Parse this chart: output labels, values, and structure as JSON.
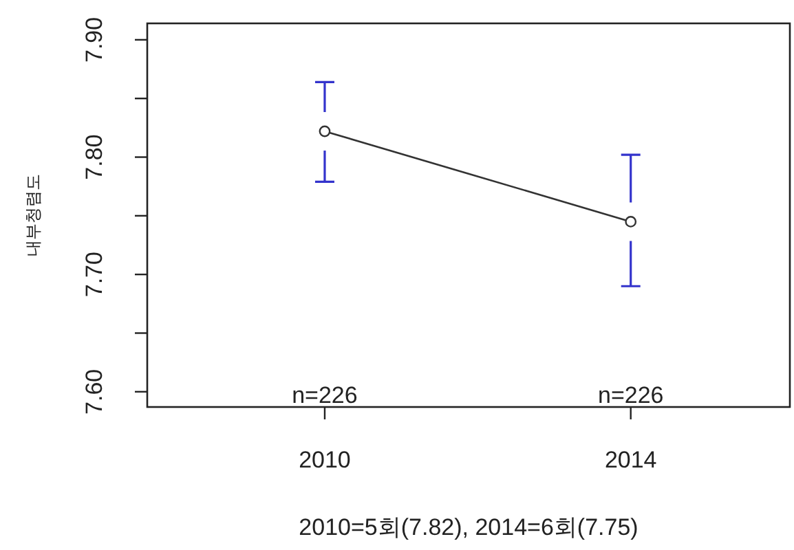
{
  "chart_data": {
    "type": "line",
    "xlabel": "2010=5회(7.82), 2014=6회(7.75)",
    "ylabel": "내부청렴도",
    "categories": [
      "2010",
      "2014"
    ],
    "series": [
      {
        "color": "#333333",
        "values": [
          7.822,
          7.745
        ],
        "errors": [
          [
            7.779,
            7.864
          ],
          [
            7.69,
            7.802
          ]
        ]
      }
    ],
    "ylim": [
      7.587,
      7.914
    ],
    "yticks": [
      {
        "value": 7.6,
        "label": "7.60"
      },
      {
        "value": 7.65,
        "label": null
      },
      {
        "value": 7.7,
        "label": "7.70"
      },
      {
        "value": 7.75,
        "label": null
      },
      {
        "value": 7.8,
        "label": "7.80"
      },
      {
        "value": 7.85,
        "label": null
      },
      {
        "value": 7.9,
        "label": "7.90"
      }
    ],
    "annotations": [
      "n=226",
      "n=226"
    ],
    "marker": "circle"
  }
}
